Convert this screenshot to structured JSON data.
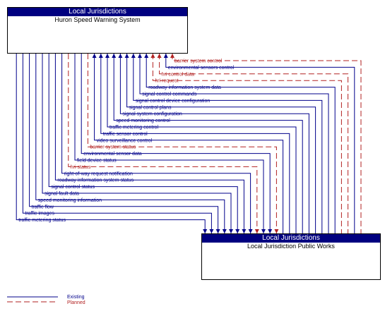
{
  "top_box": {
    "header": "Local Jurisdictions",
    "name": "Huron Speed Warning System"
  },
  "bottom_box": {
    "header": "Local Jurisdictions",
    "name": "Local Jurisdiction Public Works"
  },
  "flows": [
    {
      "label": "barrier system control",
      "status": "planned",
      "dir": "up"
    },
    {
      "label": "environmental sensors control",
      "status": "existing",
      "dir": "up"
    },
    {
      "label": "hri control data",
      "status": "planned",
      "dir": "up"
    },
    {
      "label": "hri request",
      "status": "planned",
      "dir": "up"
    },
    {
      "label": "roadway information system data",
      "status": "existing",
      "dir": "up"
    },
    {
      "label": "signal control commands",
      "status": "existing",
      "dir": "up"
    },
    {
      "label": "signal control device configuration",
      "status": "existing",
      "dir": "up"
    },
    {
      "label": "signal control plans",
      "status": "existing",
      "dir": "up"
    },
    {
      "label": "signal system configuration",
      "status": "existing",
      "dir": "up"
    },
    {
      "label": "speed monitoring control",
      "status": "existing",
      "dir": "up"
    },
    {
      "label": "traffic metering control",
      "status": "existing",
      "dir": "up"
    },
    {
      "label": "traffic sensor control",
      "status": "existing",
      "dir": "up"
    },
    {
      "label": "video surveillance control",
      "status": "existing",
      "dir": "up"
    },
    {
      "label": "barrier system status",
      "status": "planned",
      "dir": "down"
    },
    {
      "label": "environmental sensor data",
      "status": "existing",
      "dir": "down"
    },
    {
      "label": "field device status",
      "status": "existing",
      "dir": "down"
    },
    {
      "label": "hri status",
      "status": "planned",
      "dir": "down"
    },
    {
      "label": "right-of-way request notification",
      "status": "existing",
      "dir": "down"
    },
    {
      "label": "roadway information system status",
      "status": "existing",
      "dir": "down"
    },
    {
      "label": "signal control status",
      "status": "existing",
      "dir": "down"
    },
    {
      "label": "signal fault data",
      "status": "existing",
      "dir": "down"
    },
    {
      "label": "speed monitoring information",
      "status": "existing",
      "dir": "down"
    },
    {
      "label": "traffic flow",
      "status": "existing",
      "dir": "down"
    },
    {
      "label": "traffic images",
      "status": "existing",
      "dir": "down"
    },
    {
      "label": "traffic metering status",
      "status": "existing",
      "dir": "down"
    }
  ],
  "legend": {
    "existing": "Existing",
    "planned": "Planned"
  },
  "colors": {
    "existing": "#00008B",
    "planned": "#B22222",
    "header": "#000080"
  }
}
